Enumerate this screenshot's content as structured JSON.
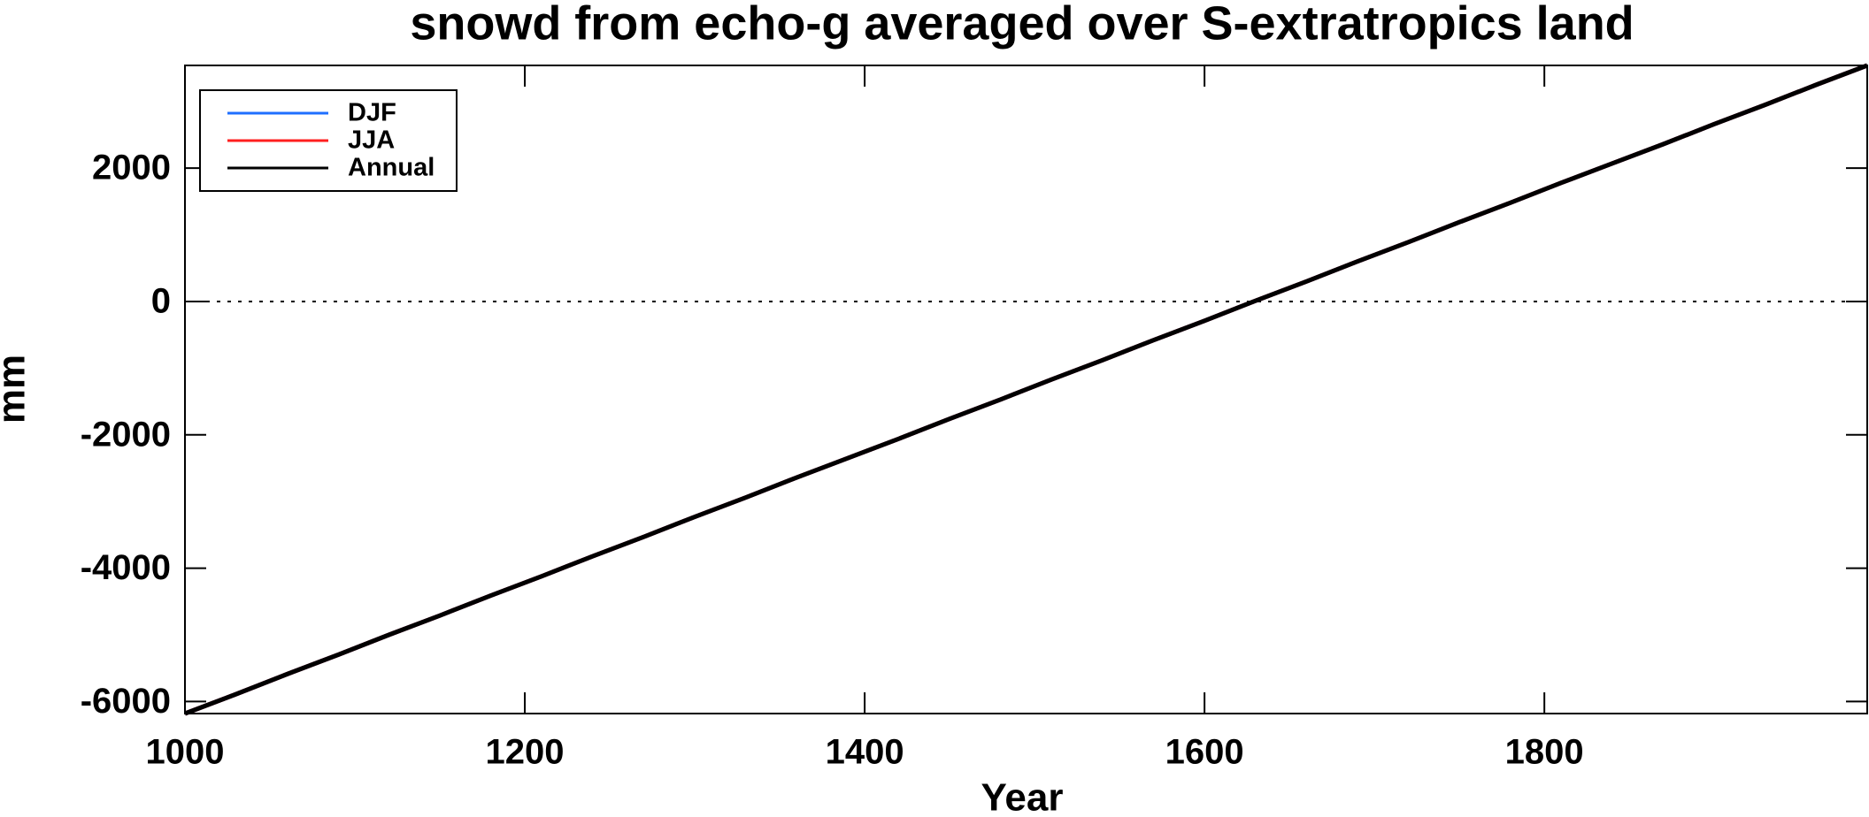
{
  "chart_data": {
    "type": "line",
    "title": "snowd from echo-g averaged over S-extratropics land",
    "x_label": "Year",
    "y_label": "mm",
    "x": [
      1000,
      1030,
      1060,
      1090,
      1120,
      1150,
      1180,
      1210,
      1240,
      1270,
      1300,
      1330,
      1360,
      1390,
      1420,
      1450,
      1480,
      1510,
      1540,
      1570,
      1600,
      1630,
      1660,
      1690,
      1720,
      1750,
      1780,
      1810,
      1840,
      1870,
      1900,
      1930,
      1960,
      1990
    ],
    "series": [
      {
        "name": "DJF",
        "color": "#1f6fff",
        "values": [
          -6180,
          -5890,
          -5590,
          -5300,
          -5000,
          -4710,
          -4410,
          -4120,
          -3820,
          -3530,
          -3230,
          -2940,
          -2640,
          -2350,
          -2060,
          -1760,
          -1470,
          -1170,
          -880,
          -580,
          -290,
          10,
          300,
          600,
          890,
          1190,
          1480,
          1780,
          2070,
          2360,
          2660,
          2950,
          3250,
          3540
        ]
      },
      {
        "name": "JJA",
        "color": "#ff1f1f",
        "values": [
          -6180,
          -5890,
          -5590,
          -5300,
          -5000,
          -4710,
          -4410,
          -4120,
          -3820,
          -3530,
          -3230,
          -2940,
          -2640,
          -2350,
          -2060,
          -1760,
          -1470,
          -1170,
          -880,
          -580,
          -290,
          10,
          300,
          600,
          890,
          1190,
          1480,
          1780,
          2070,
          2360,
          2660,
          2950,
          3250,
          3540
        ]
      },
      {
        "name": "Annual",
        "color": "#000000",
        "values": [
          -6180,
          -5890,
          -5590,
          -5300,
          -5000,
          -4710,
          -4410,
          -4120,
          -3820,
          -3530,
          -3230,
          -2940,
          -2640,
          -2350,
          -2060,
          -1760,
          -1470,
          -1170,
          -880,
          -580,
          -290,
          10,
          300,
          600,
          890,
          1190,
          1480,
          1780,
          2070,
          2360,
          2660,
          2950,
          3250,
          3540
        ]
      }
    ],
    "xlim": [
      1000,
      1990
    ],
    "xticks": [
      1000,
      1200,
      1400,
      1600,
      1800
    ],
    "ylim": [
      -6180,
      3540
    ],
    "yticks": [
      -6000,
      -4000,
      -2000,
      0,
      2000
    ],
    "zero_line": true,
    "legend": "upper left"
  }
}
